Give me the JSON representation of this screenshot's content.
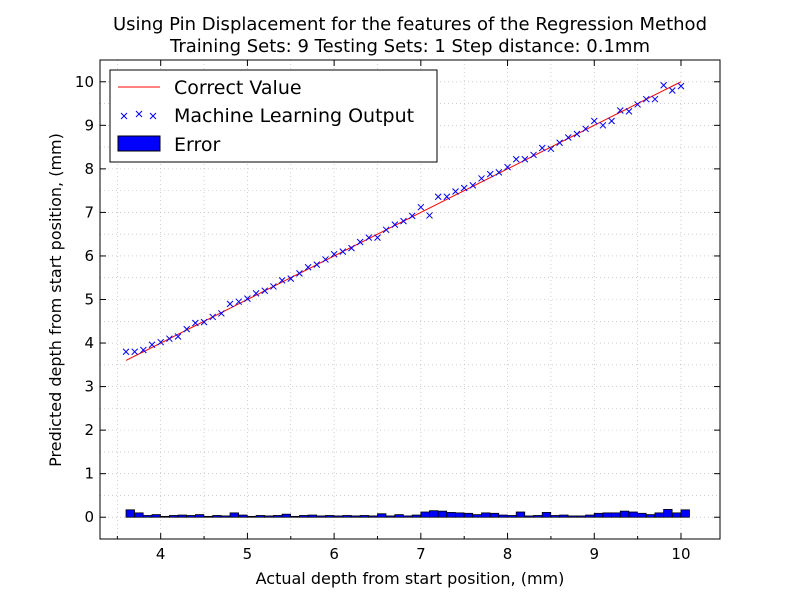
{
  "chart_data": {
    "type": "line",
    "title": "Using Pin Displacement for the features of the Regression Method",
    "subtitle": "Training Sets: 9    Testing Sets: 1    Step distance: 0.1mm",
    "xlabel": "Actual depth from start position, (mm)",
    "ylabel": "Predicted depth from start position, (mm)",
    "xlim": [
      3.3,
      10.45
    ],
    "ylim": [
      -0.5,
      10.5
    ],
    "x_ticks": [
      "4",
      "5",
      "6",
      "7",
      "8",
      "9",
      "10"
    ],
    "y_ticks": [
      "0",
      "1",
      "2",
      "3",
      "4",
      "5",
      "6",
      "7",
      "8",
      "9",
      "10"
    ],
    "grid": true,
    "legend_position": "top-left",
    "legend": [
      "Correct Value",
      "Machine Learning Output",
      "Error"
    ],
    "colors": {
      "correct": "#ff0000",
      "output": "#0000ff",
      "error": "#0000ff"
    },
    "x": [
      3.6,
      3.7,
      3.8,
      3.9,
      4.0,
      4.1,
      4.2,
      4.3,
      4.4,
      4.5,
      4.6,
      4.7,
      4.8,
      4.9,
      5.0,
      5.1,
      5.2,
      5.3,
      5.4,
      5.5,
      5.6,
      5.7,
      5.8,
      5.9,
      6.0,
      6.1,
      6.2,
      6.3,
      6.4,
      6.5,
      6.6,
      6.7,
      6.8,
      6.9,
      7.0,
      7.1,
      7.2,
      7.3,
      7.4,
      7.5,
      7.6,
      7.7,
      7.8,
      7.9,
      8.0,
      8.1,
      8.2,
      8.3,
      8.4,
      8.5,
      8.6,
      8.7,
      8.8,
      8.9,
      9.0,
      9.1,
      9.2,
      9.3,
      9.4,
      9.5,
      9.6,
      9.7,
      9.8,
      9.9,
      10.0
    ],
    "series": [
      {
        "name": "Correct Value",
        "style": "line",
        "values": [
          3.6,
          3.7,
          3.8,
          3.9,
          4.0,
          4.1,
          4.2,
          4.3,
          4.4,
          4.5,
          4.6,
          4.7,
          4.8,
          4.9,
          5.0,
          5.1,
          5.2,
          5.3,
          5.4,
          5.5,
          5.6,
          5.7,
          5.8,
          5.9,
          6.0,
          6.1,
          6.2,
          6.3,
          6.4,
          6.5,
          6.6,
          6.7,
          6.8,
          6.9,
          7.0,
          7.1,
          7.2,
          7.3,
          7.4,
          7.5,
          7.6,
          7.7,
          7.8,
          7.9,
          8.0,
          8.1,
          8.2,
          8.3,
          8.4,
          8.5,
          8.6,
          8.7,
          8.8,
          8.9,
          9.0,
          9.1,
          9.2,
          9.3,
          9.4,
          9.5,
          9.6,
          9.7,
          9.8,
          9.9,
          10.0
        ]
      },
      {
        "name": "Machine Learning Output",
        "style": "marker-x",
        "values": [
          3.8,
          3.8,
          3.84,
          3.96,
          4.02,
          4.1,
          4.15,
          4.32,
          4.46,
          4.48,
          4.6,
          4.68,
          4.9,
          4.95,
          5.02,
          5.14,
          5.2,
          5.3,
          5.44,
          5.48,
          5.6,
          5.74,
          5.8,
          5.92,
          6.04,
          6.1,
          6.18,
          6.32,
          6.42,
          6.42,
          6.6,
          6.72,
          6.8,
          6.92,
          7.12,
          6.93,
          7.36,
          7.36,
          7.48,
          7.56,
          7.62,
          7.78,
          7.88,
          7.92,
          8.04,
          8.22,
          8.22,
          8.32,
          8.48,
          8.46,
          8.6,
          8.72,
          8.8,
          8.92,
          9.1,
          9.0,
          9.1,
          9.34,
          9.32,
          9.48,
          9.6,
          9.6,
          9.92,
          9.8,
          9.9
        ]
      },
      {
        "name": "Error",
        "style": "bar",
        "values": [
          0.17,
          0.1,
          0.04,
          0.06,
          0.02,
          0.04,
          0.05,
          0.04,
          0.06,
          0.02,
          0.04,
          0.03,
          0.1,
          0.05,
          0.02,
          0.04,
          0.03,
          0.04,
          0.07,
          0.02,
          0.04,
          0.05,
          0.03,
          0.04,
          0.03,
          0.04,
          0.03,
          0.04,
          0.03,
          0.08,
          0.03,
          0.06,
          0.03,
          0.05,
          0.12,
          0.15,
          0.14,
          0.11,
          0.1,
          0.09,
          0.06,
          0.1,
          0.09,
          0.05,
          0.04,
          0.12,
          0.03,
          0.04,
          0.11,
          0.04,
          0.05,
          0.03,
          0.03,
          0.05,
          0.09,
          0.1,
          0.1,
          0.14,
          0.12,
          0.09,
          0.06,
          0.1,
          0.18,
          0.1,
          0.17
        ]
      }
    ]
  }
}
